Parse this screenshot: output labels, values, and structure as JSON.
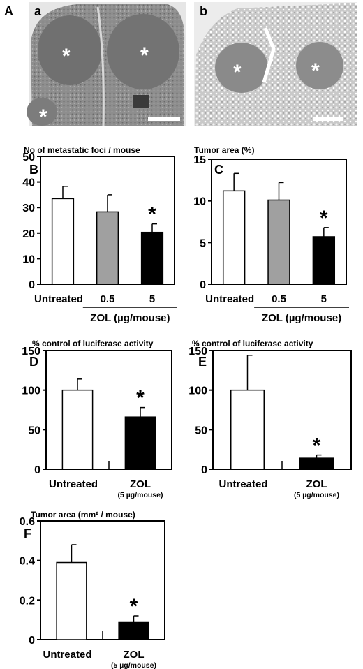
{
  "panel_A": {
    "label": "A",
    "images": [
      {
        "label": "a",
        "marker": "*"
      },
      {
        "label": "b",
        "marker": "*"
      }
    ]
  },
  "chart_data": [
    {
      "panel": "B",
      "type": "bar",
      "title": "No of metastatic foci / mouse",
      "categories": [
        "Untreated",
        "0.5",
        "5"
      ],
      "group_label": "ZOL (µg/mouse)",
      "values": [
        33.5,
        28.3,
        20.3
      ],
      "errors": [
        4.8,
        6.7,
        3.3
      ],
      "colors": [
        "#ffffff",
        "#a0a0a0",
        "#000000"
      ],
      "ylim": [
        0,
        50
      ],
      "yticks": [
        0,
        10,
        20,
        30,
        40,
        50
      ],
      "significant": [
        false,
        false,
        true
      ]
    },
    {
      "panel": "C",
      "type": "bar",
      "title": "Tumor area (%)",
      "categories": [
        "Untreated",
        "0.5",
        "5"
      ],
      "group_label": "ZOL (µg/mouse)",
      "values": [
        11.2,
        10.1,
        5.7
      ],
      "errors": [
        2.1,
        2.1,
        1.1
      ],
      "colors": [
        "#ffffff",
        "#a0a0a0",
        "#000000"
      ],
      "ylim": [
        0,
        15
      ],
      "yticks": [
        0,
        5,
        10,
        15
      ],
      "significant": [
        false,
        false,
        true
      ]
    },
    {
      "panel": "D",
      "type": "bar",
      "title": "% control of luciferase activity",
      "categories": [
        "Untreated",
        "ZOL"
      ],
      "subcategories": [
        "",
        "(5 µg/mouse)"
      ],
      "values": [
        100,
        66
      ],
      "errors": [
        14,
        12
      ],
      "colors": [
        "#ffffff",
        "#000000"
      ],
      "ylim": [
        0,
        150
      ],
      "yticks": [
        0,
        50,
        100,
        150
      ],
      "significant": [
        false,
        true
      ]
    },
    {
      "panel": "E",
      "type": "bar",
      "title": "% control of luciferase activity",
      "categories": [
        "Untreated",
        "ZOL"
      ],
      "subcategories": [
        "",
        "(5 µg/mouse)"
      ],
      "values": [
        100,
        14
      ],
      "errors": [
        44,
        4
      ],
      "colors": [
        "#ffffff",
        "#000000"
      ],
      "ylim": [
        0,
        150
      ],
      "yticks": [
        0,
        50,
        100,
        150
      ],
      "significant": [
        false,
        true
      ]
    },
    {
      "panel": "F",
      "type": "bar",
      "title": "Tumor area (mm² / mouse)",
      "categories": [
        "Untreated",
        "ZOL"
      ],
      "subcategories": [
        "",
        "(5 µg/mouse)"
      ],
      "values": [
        0.39,
        0.09
      ],
      "errors": [
        0.09,
        0.03
      ],
      "colors": [
        "#ffffff",
        "#000000"
      ],
      "ylim": [
        0,
        0.6
      ],
      "yticks": [
        0,
        0.2,
        0.4,
        0.6
      ],
      "significant": [
        false,
        true
      ]
    }
  ],
  "significance_marker": "*"
}
